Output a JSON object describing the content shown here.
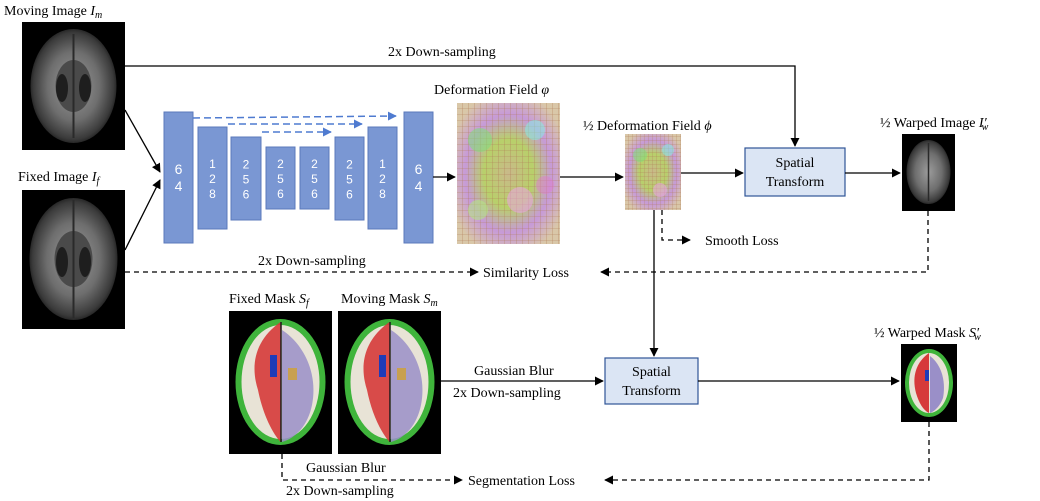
{
  "labels": {
    "moving_image": "Moving Image",
    "moving_image_sym": "I",
    "moving_image_sub": "m",
    "fixed_image": "Fixed Image",
    "fixed_image_sym": "I",
    "fixed_image_sub": "f",
    "deformation_field": "Deformation Field",
    "deformation_field_sym": "φ",
    "half_deformation_field": "½ Deformation Field",
    "half_deformation_field_sym": "ϕ",
    "half_warped_image": "½ Warped Image",
    "half_warped_image_sym": "I",
    "half_warped_image_sub": "w",
    "half_warped_image_prime": "′",
    "fixed_mask": "Fixed Mask",
    "fixed_mask_sym": "S",
    "fixed_mask_sub": "f",
    "moving_mask": "Moving Mask",
    "moving_mask_sym": "S",
    "moving_mask_sub": "m",
    "half_warped_mask": "½ Warped Mask",
    "half_warped_mask_sym": "S",
    "half_warped_mask_sub": "w",
    "half_warped_mask_prime": "′",
    "downsampling_top": "2x Down-sampling",
    "downsampling_mid": "2x Down-sampling",
    "smooth_loss": "Smooth Loss",
    "similarity_loss": "Similarity Loss",
    "gaussian_blur_mid": "Gaussian Blur",
    "downsampling_mask": "2x Down-sampling",
    "gaussian_blur_bottom": "Gaussian Blur",
    "downsampling_bottom": "2x Down-sampling",
    "segmentation_loss": "Segmentation Loss",
    "spatial_transform_1_line1": "Spatial",
    "spatial_transform_1_line2": "Transform",
    "spatial_transform_2_line1": "Spatial",
    "spatial_transform_2_line2": "Transform"
  },
  "unet_blocks": [
    {
      "digits": [
        "6",
        "4"
      ]
    },
    {
      "digits": [
        "1",
        "2",
        "8"
      ]
    },
    {
      "digits": [
        "2",
        "5",
        "6"
      ]
    },
    {
      "digits": [
        "2",
        "5",
        "6"
      ]
    },
    {
      "digits": [
        "2",
        "5",
        "6"
      ]
    },
    {
      "digits": [
        "2",
        "5",
        "6"
      ]
    },
    {
      "digits": [
        "1",
        "2",
        "8"
      ]
    },
    {
      "digits": [
        "6",
        "4"
      ]
    }
  ],
  "colors": {
    "unet_block": "#7a97d3",
    "unet_block_border": "#5b79bb",
    "skip_arrow": "#4f7bd0",
    "transform_box": "#dbe5f4",
    "transform_border": "#2f5597",
    "mask_green": "#3fb43b",
    "mask_red": "#d63a3a",
    "mask_purple": "#9a8fc8"
  }
}
